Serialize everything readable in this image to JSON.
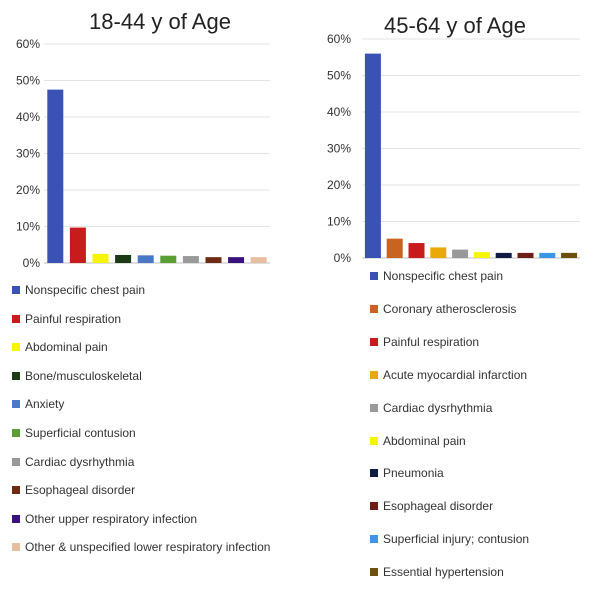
{
  "chart_data": [
    {
      "type": "bar",
      "title": "18-44 y of Age",
      "xlabel": "",
      "ylabel": "",
      "ylim": [
        0,
        0.6
      ],
      "yticks": [
        "0%",
        "10%",
        "20%",
        "30%",
        "40%",
        "50%",
        "60%"
      ],
      "grid": true,
      "legend_position": "bottom",
      "categories": [
        "Nonspecific chest pain",
        "Painful respiration",
        "Abdominal pain",
        "Bone/musculoskeletal",
        "Anxiety",
        "Superficial contusion",
        "Cardiac dysrhythmia",
        "Esophageal disorder",
        "Other upper respiratory infection",
        "Other & unspecified lower respiratory infection"
      ],
      "values": [
        0.475,
        0.097,
        0.025,
        0.022,
        0.021,
        0.02,
        0.019,
        0.016,
        0.016,
        0.016
      ],
      "colors": [
        "#3a52b4",
        "#c81c1c",
        "#f5f500",
        "#1c3a16",
        "#4a78c8",
        "#5a9e34",
        "#999999",
        "#6e2a12",
        "#38117c",
        "#e6bea0"
      ]
    },
    {
      "type": "bar",
      "title": "45-64 y of Age",
      "xlabel": "",
      "ylabel": "",
      "ylim": [
        0,
        0.6
      ],
      "yticks": [
        "0%",
        "10%",
        "20%",
        "30%",
        "40%",
        "50%",
        "60%"
      ],
      "grid": true,
      "legend_position": "bottom",
      "categories": [
        "Nonspecific chest pain",
        "Coronary atherosclerosis",
        "Painful respiration",
        "Acute myocardial infarction",
        "Cardiac dysrhythmia",
        "Abdominal pain",
        "Pneumonia",
        "Esophageal disorder",
        "Superficial injury; contusion",
        "Essential hypertension"
      ],
      "values": [
        0.56,
        0.053,
        0.041,
        0.029,
        0.023,
        0.016,
        0.014,
        0.014,
        0.014,
        0.014
      ],
      "colors": [
        "#3a52b4",
        "#c8641e",
        "#c81c1c",
        "#e8aa08",
        "#999999",
        "#f5f500",
        "#101c44",
        "#6e1e14",
        "#3c96e6",
        "#6e5008"
      ]
    }
  ]
}
